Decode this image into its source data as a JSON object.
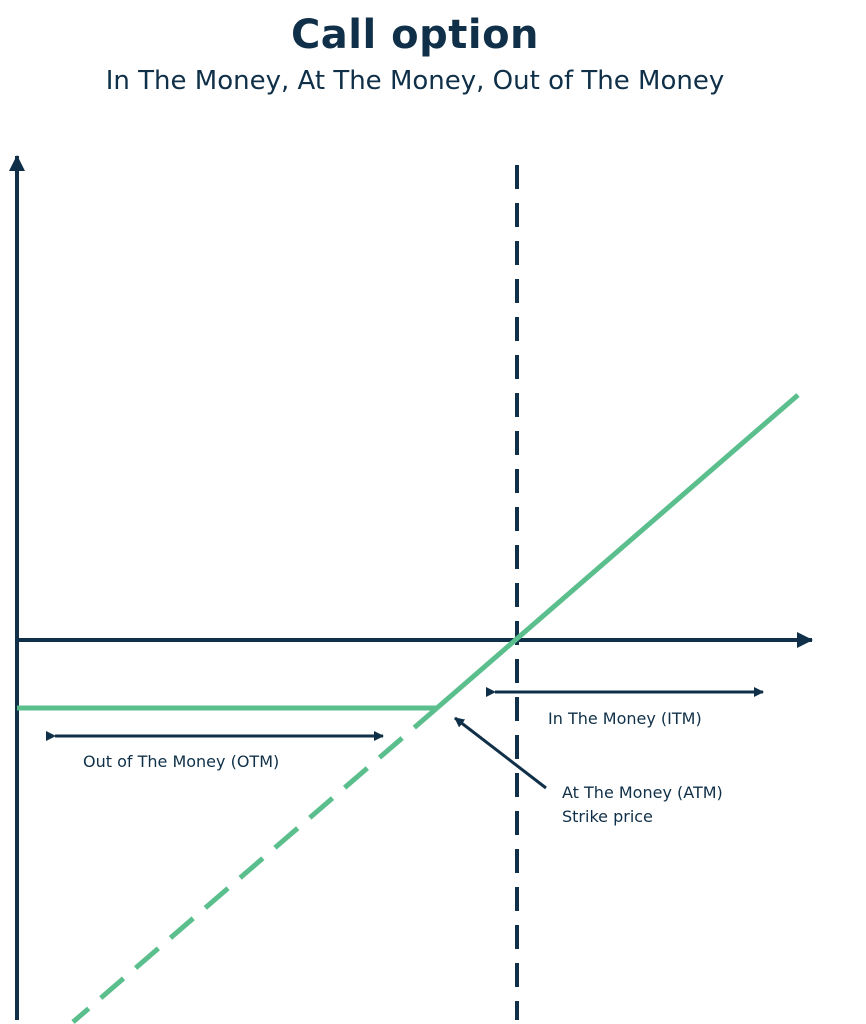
{
  "header": {
    "title": "Call option",
    "subtitle": "In The Money, At The Money, Out of The Money"
  },
  "labels": {
    "itm": "In The Money (ITM)",
    "otm": "Out of The Money (OTM)",
    "atm_line1": "At The Money (ATM)",
    "atm_line2": "Strike price"
  },
  "colors": {
    "navy": "#0f3048",
    "green": "#5bbf8d",
    "background": "#ffffff"
  }
}
